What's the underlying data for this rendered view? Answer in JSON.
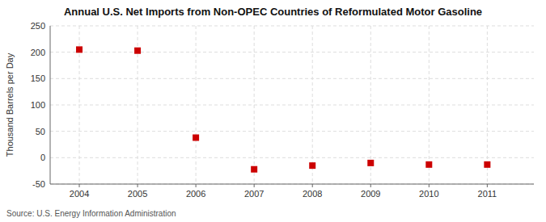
{
  "chart_data": {
    "type": "scatter",
    "title": "Annual U.S. Net Imports from Non-OPEC Countries of Reformulated Motor Gasoline",
    "ylabel": "Thousand Barrels per Day",
    "source": "Source: U.S. Energy Information Administration",
    "x": [
      2004,
      2005,
      2006,
      2007,
      2008,
      2009,
      2010,
      2011
    ],
    "values": [
      205,
      203,
      38,
      -22,
      -15,
      -10,
      -13,
      -13
    ],
    "xlim": [
      2003.5,
      2011.8
    ],
    "ylim": [
      -50,
      250
    ],
    "xticks": [
      2004,
      2005,
      2006,
      2007,
      2008,
      2009,
      2010,
      2011
    ],
    "yticks": [
      -50,
      0,
      50,
      100,
      150,
      200,
      250
    ],
    "color": "#cc0000",
    "marker": "square",
    "grid": true
  }
}
